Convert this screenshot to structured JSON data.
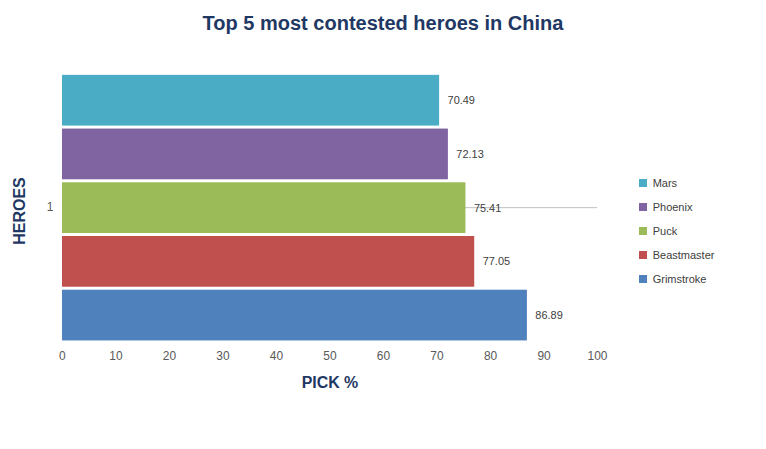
{
  "chart_data": {
    "type": "bar",
    "orientation": "horizontal",
    "title": "Top 5 most contested heroes in China",
    "xlabel": "PICK %",
    "ylabel": "HEROES",
    "categories": [
      "1"
    ],
    "series": [
      {
        "name": "Mars",
        "color": "#4bacc6",
        "values": [
          70.49
        ]
      },
      {
        "name": "Phoenix",
        "color": "#8064a2",
        "values": [
          72.13
        ]
      },
      {
        "name": "Puck",
        "color": "#9bbb59",
        "values": [
          75.41
        ]
      },
      {
        "name": "Beastmaster",
        "color": "#c0504d",
        "values": [
          77.05
        ]
      },
      {
        "name": "Grimstroke",
        "color": "#4f81bd",
        "values": [
          86.89
        ]
      }
    ],
    "xlim": [
      0,
      100
    ],
    "xticks": [
      0,
      10,
      20,
      30,
      40,
      50,
      60,
      70,
      80,
      90,
      100
    ],
    "grid": false,
    "data_labels": true,
    "legend": "right"
  }
}
